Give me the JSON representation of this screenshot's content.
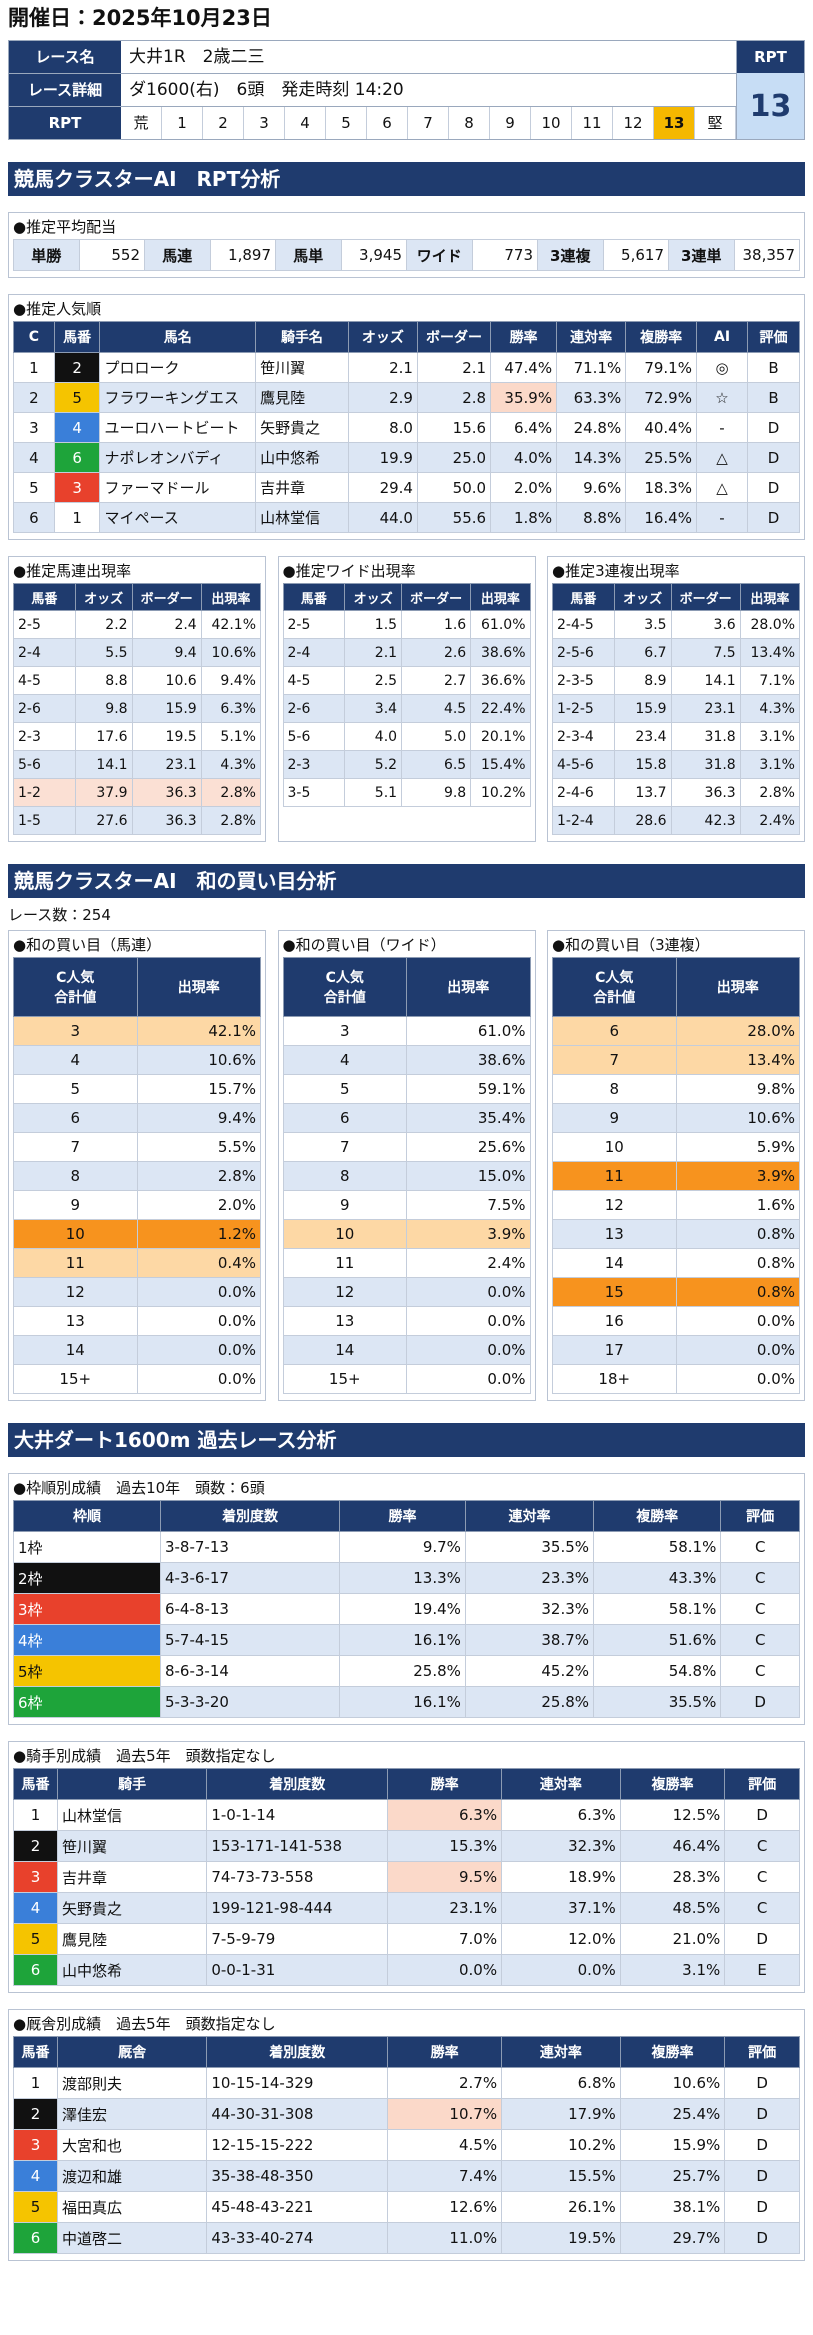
{
  "header": {
    "title": "開催日：2025年10月23日"
  },
  "race": {
    "labels": [
      "レース名",
      "レース詳細"
    ],
    "name": "大井1R　2歳二三",
    "detail": "ダ1600(右)　6頭　発走時刻 14:20",
    "rpt_label": "RPT",
    "rpt_scale": [
      "荒",
      1,
      2,
      3,
      4,
      5,
      6,
      7,
      8,
      9,
      10,
      11,
      12,
      13,
      "堅"
    ],
    "rpt": 13
  },
  "rpt_analysis": {
    "title": "競馬クラスターAI　RPT分析",
    "avg_payout": {
      "title": "●推定平均配当",
      "items": [
        [
          "単勝",
          "552"
        ],
        [
          "馬連",
          "1,897"
        ],
        [
          "馬単",
          "3,945"
        ],
        [
          "ワイド",
          "773"
        ],
        [
          "3連複",
          "5,617"
        ],
        [
          "3連単",
          "38,357"
        ]
      ]
    },
    "popularity": {
      "title": "●推定人気順",
      "headers": [
        "C",
        "馬番",
        "馬名",
        "騎手名",
        "オッズ",
        "ボーダー",
        "勝率",
        "連対率",
        "複勝率",
        "AI",
        "評価"
      ],
      "rows": [
        [
          "1",
          "2",
          "プロローク",
          "笹川翼",
          "2.1",
          "2.1",
          "47.4%",
          "71.1%",
          "79.1%",
          "◎",
          "B"
        ],
        [
          "2",
          "5",
          "フラワーキングエス",
          "鷹見陸",
          "2.9",
          "2.8",
          "35.9%",
          "63.3%",
          "72.9%",
          "☆",
          "B"
        ],
        [
          "3",
          "4",
          "ユーロハートビート",
          "矢野貴之",
          "8.0",
          "15.6",
          "6.4%",
          "24.8%",
          "40.4%",
          "-",
          "D"
        ],
        [
          "4",
          "6",
          "ナポレオンバディ",
          "山中悠希",
          "19.9",
          "25.0",
          "4.0%",
          "14.3%",
          "25.5%",
          "△",
          "D"
        ],
        [
          "5",
          "3",
          "ファーマドール",
          "吉井章",
          "29.4",
          "50.0",
          "2.0%",
          "9.6%",
          "18.3%",
          "△",
          "D"
        ],
        [
          "6",
          "1",
          "マイペース",
          "山林堂信",
          "44.0",
          "55.6",
          "1.8%",
          "8.8%",
          "16.4%",
          "-",
          "D"
        ]
      ],
      "highlight_cells": [
        [
          1,
          6
        ]
      ]
    },
    "combos": [
      {
        "title": "●推定馬連出現率",
        "headers": [
          "馬番",
          "オッズ",
          "ボーダー",
          "出現率"
        ],
        "rows": [
          [
            "2-5",
            "2.2",
            "2.4",
            "42.1%"
          ],
          [
            "2-4",
            "5.5",
            "9.4",
            "10.6%"
          ],
          [
            "4-5",
            "8.8",
            "10.6",
            "9.4%"
          ],
          [
            "2-6",
            "9.8",
            "15.9",
            "6.3%"
          ],
          [
            "2-3",
            "17.6",
            "19.5",
            "5.1%"
          ],
          [
            "5-6",
            "14.1",
            "23.1",
            "4.3%"
          ],
          [
            "1-2",
            "37.9",
            "36.3",
            "2.8%"
          ],
          [
            "1-5",
            "27.6",
            "36.3",
            "2.8%"
          ]
        ],
        "highlight_rows": {
          "peach": [
            6
          ]
        }
      },
      {
        "title": "●推定ワイド出現率",
        "headers": [
          "馬番",
          "オッズ",
          "ボーダー",
          "出現率"
        ],
        "rows": [
          [
            "2-5",
            "1.5",
            "1.6",
            "61.0%"
          ],
          [
            "2-4",
            "2.1",
            "2.6",
            "38.6%"
          ],
          [
            "4-5",
            "2.5",
            "2.7",
            "36.6%"
          ],
          [
            "2-6",
            "3.4",
            "4.5",
            "22.4%"
          ],
          [
            "5-6",
            "4.0",
            "5.0",
            "20.1%"
          ],
          [
            "2-3",
            "5.2",
            "6.5",
            "15.4%"
          ],
          [
            "3-5",
            "5.1",
            "9.8",
            "10.2%"
          ]
        ]
      },
      {
        "title": "●推定3連複出現率",
        "headers": [
          "馬番",
          "オッズ",
          "ボーダー",
          "出現率"
        ],
        "rows": [
          [
            "2-4-5",
            "3.5",
            "3.6",
            "28.0%"
          ],
          [
            "2-5-6",
            "6.7",
            "7.5",
            "13.4%"
          ],
          [
            "2-3-5",
            "8.9",
            "14.1",
            "7.1%"
          ],
          [
            "1-2-5",
            "15.9",
            "23.1",
            "4.3%"
          ],
          [
            "2-3-4",
            "23.4",
            "31.8",
            "3.1%"
          ],
          [
            "4-5-6",
            "15.8",
            "31.8",
            "3.1%"
          ],
          [
            "2-4-6",
            "13.7",
            "36.3",
            "2.8%"
          ],
          [
            "1-2-4",
            "28.6",
            "42.3",
            "2.4%"
          ]
        ]
      }
    ]
  },
  "sum_analysis": {
    "title": "競馬クラスターAI　和の買い目分析",
    "count": "レース数：254",
    "tables": [
      {
        "title": "●和の買い目（馬連）",
        "headers": [
          "C人気\n合計値",
          "出現率"
        ],
        "rows": [
          [
            "3",
            "42.1%"
          ],
          [
            "4",
            "10.6%"
          ],
          [
            "5",
            "15.7%"
          ],
          [
            "6",
            "9.4%"
          ],
          [
            "7",
            "5.5%"
          ],
          [
            "8",
            "2.8%"
          ],
          [
            "9",
            "2.0%"
          ],
          [
            "10",
            "1.2%"
          ],
          [
            "11",
            "0.4%"
          ],
          [
            "12",
            "0.0%"
          ],
          [
            "13",
            "0.0%"
          ],
          [
            "14",
            "0.0%"
          ],
          [
            "15+",
            "0.0%"
          ]
        ],
        "highlight_rows": {
          "light": [
            0,
            8
          ],
          "dark": [
            7
          ]
        }
      },
      {
        "title": "●和の買い目（ワイド）",
        "headers": [
          "C人気\n合計値",
          "出現率"
        ],
        "rows": [
          [
            "3",
            "61.0%"
          ],
          [
            "4",
            "38.6%"
          ],
          [
            "5",
            "59.1%"
          ],
          [
            "6",
            "35.4%"
          ],
          [
            "7",
            "25.6%"
          ],
          [
            "8",
            "15.0%"
          ],
          [
            "9",
            "7.5%"
          ],
          [
            "10",
            "3.9%"
          ],
          [
            "11",
            "2.4%"
          ],
          [
            "12",
            "0.0%"
          ],
          [
            "13",
            "0.0%"
          ],
          [
            "14",
            "0.0%"
          ],
          [
            "15+",
            "0.0%"
          ]
        ],
        "highlight_rows": {
          "light": [
            7
          ]
        }
      },
      {
        "title": "●和の買い目（3連複）",
        "headers": [
          "C人気\n合計値",
          "出現率"
        ],
        "rows": [
          [
            "6",
            "28.0%"
          ],
          [
            "7",
            "13.4%"
          ],
          [
            "8",
            "9.8%"
          ],
          [
            "9",
            "10.6%"
          ],
          [
            "10",
            "5.9%"
          ],
          [
            "11",
            "3.9%"
          ],
          [
            "12",
            "1.6%"
          ],
          [
            "13",
            "0.8%"
          ],
          [
            "14",
            "0.8%"
          ],
          [
            "15",
            "0.8%"
          ],
          [
            "16",
            "0.0%"
          ],
          [
            "17",
            "0.0%"
          ],
          [
            "18+",
            "0.0%"
          ]
        ],
        "highlight_rows": {
          "light": [
            0,
            1
          ],
          "dark": [
            5,
            9
          ]
        }
      }
    ]
  },
  "course_analysis": {
    "title": "大井ダート1600m 過去レース分析",
    "gate": {
      "title": "●枠順別成績　過去10年　頭数：6頭",
      "headers": [
        "枠順",
        "着別度数",
        "勝率",
        "連対率",
        "複勝率",
        "評価"
      ],
      "rows": [
        [
          "1枠",
          "3-8-7-13",
          "9.7%",
          "35.5%",
          "58.1%",
          "C"
        ],
        [
          "2枠",
          "4-3-6-17",
          "13.3%",
          "23.3%",
          "43.3%",
          "C"
        ],
        [
          "3枠",
          "6-4-8-13",
          "19.4%",
          "32.3%",
          "58.1%",
          "C"
        ],
        [
          "4枠",
          "5-7-4-15",
          "16.1%",
          "38.7%",
          "51.6%",
          "C"
        ],
        [
          "5枠",
          "8-6-3-14",
          "25.8%",
          "45.2%",
          "54.8%",
          "C"
        ],
        [
          "6枠",
          "5-3-3-20",
          "16.1%",
          "25.8%",
          "35.5%",
          "D"
        ]
      ]
    },
    "jockey": {
      "title": "●騎手別成績　過去5年　頭数指定なし",
      "headers": [
        "馬番",
        "騎手",
        "着別度数",
        "勝率",
        "連対率",
        "複勝率",
        "評価"
      ],
      "rows": [
        [
          "1",
          "山林堂信",
          "1-0-1-14",
          "6.3%",
          "6.3%",
          "12.5%",
          "D"
        ],
        [
          "2",
          "笹川翼",
          "153-171-141-538",
          "15.3%",
          "32.3%",
          "46.4%",
          "C"
        ],
        [
          "3",
          "吉井章",
          "74-73-73-558",
          "9.5%",
          "18.9%",
          "28.3%",
          "C"
        ],
        [
          "4",
          "矢野貴之",
          "199-121-98-444",
          "23.1%",
          "37.1%",
          "48.5%",
          "C"
        ],
        [
          "5",
          "鷹見陸",
          "7-5-9-79",
          "7.0%",
          "12.0%",
          "21.0%",
          "D"
        ],
        [
          "6",
          "山中悠希",
          "0-0-1-31",
          "0.0%",
          "0.0%",
          "3.1%",
          "E"
        ]
      ],
      "highlight_cells": [
        [
          0,
          3
        ],
        [
          2,
          3
        ]
      ]
    },
    "stable": {
      "title": "●厩舎別成績　過去5年　頭数指定なし",
      "headers": [
        "馬番",
        "厩舎",
        "着別度数",
        "勝率",
        "連対率",
        "複勝率",
        "評価"
      ],
      "rows": [
        [
          "1",
          "渡部則夫",
          "10-15-14-329",
          "2.7%",
          "6.8%",
          "10.6%",
          "D"
        ],
        [
          "2",
          "澤佳宏",
          "44-30-31-308",
          "10.7%",
          "17.9%",
          "25.4%",
          "D"
        ],
        [
          "3",
          "大宮和也",
          "12-15-15-222",
          "4.5%",
          "10.2%",
          "15.9%",
          "D"
        ],
        [
          "4",
          "渡辺和雄",
          "35-38-48-350",
          "7.4%",
          "15.5%",
          "25.7%",
          "D"
        ],
        [
          "5",
          "福田真広",
          "45-48-43-221",
          "12.6%",
          "26.1%",
          "38.1%",
          "D"
        ],
        [
          "6",
          "中道啓二",
          "43-33-40-274",
          "11.0%",
          "19.5%",
          "29.7%",
          "D"
        ]
      ],
      "highlight_cells": [
        [
          1,
          3
        ]
      ]
    }
  }
}
